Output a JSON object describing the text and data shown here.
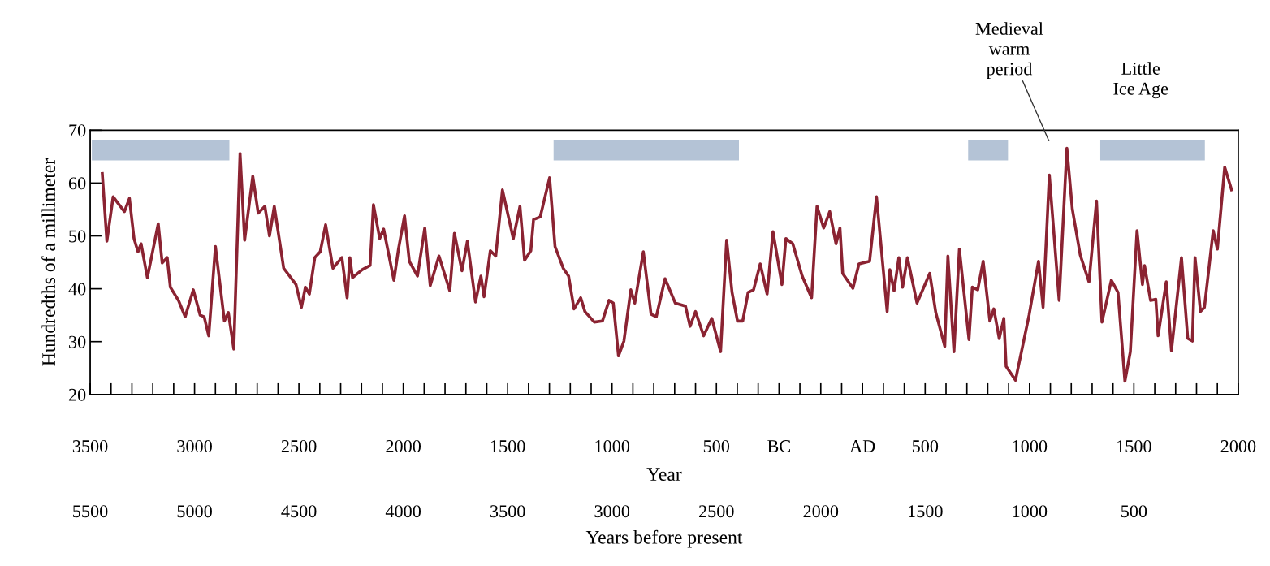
{
  "chart_data": {
    "type": "line",
    "xlabel": "Year",
    "ylabel": "Hundredths of a millimeter",
    "x2label": "Years before present",
    "xlim": [
      -3500,
      2000
    ],
    "ylim": [
      20,
      70
    ],
    "yticks": [
      20,
      30,
      40,
      50,
      60,
      70
    ],
    "xticks": [
      {
        "value": -3500,
        "label": "3500"
      },
      {
        "value": -3400,
        "label": null
      },
      {
        "value": -3300,
        "label": null
      },
      {
        "value": -3200,
        "label": null
      },
      {
        "value": -3100,
        "label": null
      },
      {
        "value": -3000,
        "label": "3000"
      },
      {
        "value": -2900,
        "label": null
      },
      {
        "value": -2800,
        "label": null
      },
      {
        "value": -2700,
        "label": null
      },
      {
        "value": -2600,
        "label": null
      },
      {
        "value": -2500,
        "label": "2500"
      },
      {
        "value": -2400,
        "label": null
      },
      {
        "value": -2300,
        "label": null
      },
      {
        "value": -2200,
        "label": null
      },
      {
        "value": -2100,
        "label": null
      },
      {
        "value": -2000,
        "label": "2000"
      },
      {
        "value": -1900,
        "label": null
      },
      {
        "value": -1800,
        "label": null
      },
      {
        "value": -1700,
        "label": null
      },
      {
        "value": -1600,
        "label": null
      },
      {
        "value": -1500,
        "label": "1500"
      },
      {
        "value": -1400,
        "label": null
      },
      {
        "value": -1300,
        "label": null
      },
      {
        "value": -1200,
        "label": null
      },
      {
        "value": -1100,
        "label": null
      },
      {
        "value": -1000,
        "label": "1000"
      },
      {
        "value": -900,
        "label": null
      },
      {
        "value": -800,
        "label": null
      },
      {
        "value": -700,
        "label": null
      },
      {
        "value": -600,
        "label": null
      },
      {
        "value": -500,
        "label": "500"
      },
      {
        "value": -400,
        "label": null
      },
      {
        "value": -300,
        "label": null
      },
      {
        "value": -200,
        "label": "BC"
      },
      {
        "value": -100,
        "label": null
      },
      {
        "value": 0,
        "label": null
      },
      {
        "value": 100,
        "label": null
      },
      {
        "value": 200,
        "label": "AD"
      },
      {
        "value": 300,
        "label": null
      },
      {
        "value": 400,
        "label": null
      },
      {
        "value": 500,
        "label": "500"
      },
      {
        "value": 600,
        "label": null
      },
      {
        "value": 700,
        "label": null
      },
      {
        "value": 800,
        "label": null
      },
      {
        "value": 900,
        "label": null
      },
      {
        "value": 1000,
        "label": "1000"
      },
      {
        "value": 1100,
        "label": null
      },
      {
        "value": 1200,
        "label": null
      },
      {
        "value": 1300,
        "label": null
      },
      {
        "value": 1400,
        "label": null
      },
      {
        "value": 1500,
        "label": "1500"
      },
      {
        "value": 1600,
        "label": null
      },
      {
        "value": 1700,
        "label": null
      },
      {
        "value": 1800,
        "label": null
      },
      {
        "value": 1900,
        "label": null
      },
      {
        "value": 2000,
        "label": "2000"
      }
    ],
    "x2lim": [
      5500,
      0
    ],
    "x2ticks": [
      5500,
      5000,
      4500,
      4000,
      3500,
      3000,
      2500,
      2000,
      1500,
      1000,
      500
    ],
    "bands": [
      {
        "axis": "x",
        "from": -3492,
        "to": -2833,
        "color": "#b4c3d6"
      },
      {
        "axis": "x",
        "from": -1280,
        "to": -392,
        "color": "#b4c3d6"
      },
      {
        "axis": "x",
        "from": 706,
        "to": 897,
        "color": "#b4c3d6"
      },
      {
        "axis": "x",
        "from": 1339,
        "to": 1840,
        "color": "#b4c3d6"
      }
    ],
    "annotations": [
      "Medieval\nwarm\nperiod",
      "Little\nIce Age"
    ],
    "series": [
      {
        "color": "#8b2332",
        "x": [
          -3442,
          -3420,
          -3390,
          -3336,
          -3312,
          -3290,
          -3271,
          -3256,
          -3226,
          -3174,
          -3155,
          -3131,
          -3116,
          -3077,
          -3045,
          -3006,
          -2973,
          -2954,
          -2932,
          -2900,
          -2857,
          -2838,
          -2812,
          -2782,
          -2760,
          -2721,
          -2695,
          -2663,
          -2641,
          -2618,
          -2573,
          -2514,
          -2488,
          -2469,
          -2450,
          -2424,
          -2398,
          -2372,
          -2337,
          -2294,
          -2269,
          -2256,
          -2243,
          -2197,
          -2159,
          -2143,
          -2113,
          -2094,
          -2045,
          -2023,
          -1994,
          -1971,
          -1932,
          -1897,
          -1871,
          -1829,
          -1777,
          -1755,
          -1719,
          -1693,
          -1654,
          -1628,
          -1613,
          -1583,
          -1557,
          -1525,
          -1473,
          -1441,
          -1419,
          -1389,
          -1376,
          -1344,
          -1299,
          -1273,
          -1234,
          -1208,
          -1182,
          -1150,
          -1130,
          -1085,
          -1046,
          -1014,
          -994,
          -969,
          -943,
          -910,
          -891,
          -850,
          -813,
          -788,
          -746,
          -697,
          -648,
          -626,
          -600,
          -561,
          -522,
          -480,
          -451,
          -425,
          -399,
          -374,
          -348,
          -322,
          -290,
          -257,
          -229,
          -186,
          -167,
          -134,
          -89,
          -44,
          -18,
          14,
          43,
          73,
          92,
          105,
          154,
          183,
          234,
          267,
          318,
          331,
          351,
          374,
          392,
          415,
          461,
          522,
          551,
          594,
          609,
          638,
          664,
          710,
          726,
          752,
          778,
          810,
          829,
          855,
          877,
          888,
          933,
          998,
          1043,
          1065,
          1095,
          1142,
          1179,
          1205,
          1243,
          1285,
          1321,
          1347,
          1392,
          1424,
          1457,
          1483,
          1515,
          1541,
          1551,
          1580,
          1605,
          1616,
          1655,
          1680,
          1728,
          1758,
          1780,
          1793,
          1819,
          1838,
          1880,
          1900,
          1935,
          1968
        ],
        "values": [
          61.8,
          49.0,
          57.4,
          54.6,
          57.1,
          49.5,
          47.0,
          48.5,
          42.1,
          52.3,
          44.9,
          45.9,
          40.3,
          37.8,
          34.7,
          39.8,
          35.0,
          34.7,
          31.1,
          48.0,
          33.9,
          35.5,
          28.6,
          65.6,
          49.2,
          61.3,
          54.3,
          55.6,
          50.0,
          55.6,
          43.9,
          40.8,
          36.5,
          40.3,
          39.0,
          45.9,
          47.0,
          52.1,
          43.9,
          45.9,
          38.3,
          45.9,
          42.1,
          43.6,
          44.4,
          55.9,
          49.5,
          51.3,
          41.6,
          47.5,
          53.8,
          45.2,
          42.4,
          51.5,
          40.6,
          46.2,
          39.6,
          50.5,
          43.4,
          49.0,
          37.5,
          42.4,
          38.5,
          47.2,
          46.2,
          58.7,
          49.5,
          55.6,
          45.4,
          47.2,
          53.1,
          53.6,
          61.0,
          48.0,
          43.9,
          42.4,
          36.2,
          38.3,
          35.7,
          33.7,
          33.9,
          37.8,
          37.3,
          27.3,
          30.1,
          39.8,
          37.3,
          47.0,
          35.2,
          34.7,
          41.9,
          37.3,
          36.7,
          32.9,
          35.7,
          31.1,
          34.4,
          28.1,
          49.2,
          39.3,
          33.9,
          33.9,
          39.3,
          39.8,
          44.7,
          39.0,
          50.8,
          40.8,
          49.5,
          48.5,
          42.4,
          38.3,
          55.6,
          51.5,
          54.6,
          48.5,
          51.5,
          42.9,
          40.1,
          44.7,
          45.2,
          57.4,
          35.7,
          43.6,
          39.6,
          45.9,
          40.3,
          45.9,
          37.3,
          42.9,
          35.5,
          29.1,
          46.2,
          28.1,
          47.5,
          30.4,
          40.3,
          39.8,
          45.2,
          33.9,
          36.2,
          30.6,
          34.4,
          25.3,
          22.7,
          35.0,
          45.2,
          36.5,
          61.5,
          37.8,
          66.6,
          55.1,
          46.4,
          41.3,
          56.6,
          33.7,
          41.6,
          39.3,
          22.5,
          28.1,
          51.0,
          40.8,
          44.4,
          37.8,
          38.0,
          31.1,
          41.3,
          28.3,
          45.9,
          30.6,
          30.1,
          45.9,
          35.7,
          36.5,
          51.0,
          47.5,
          63.0,
          58.7
        ]
      }
    ]
  }
}
